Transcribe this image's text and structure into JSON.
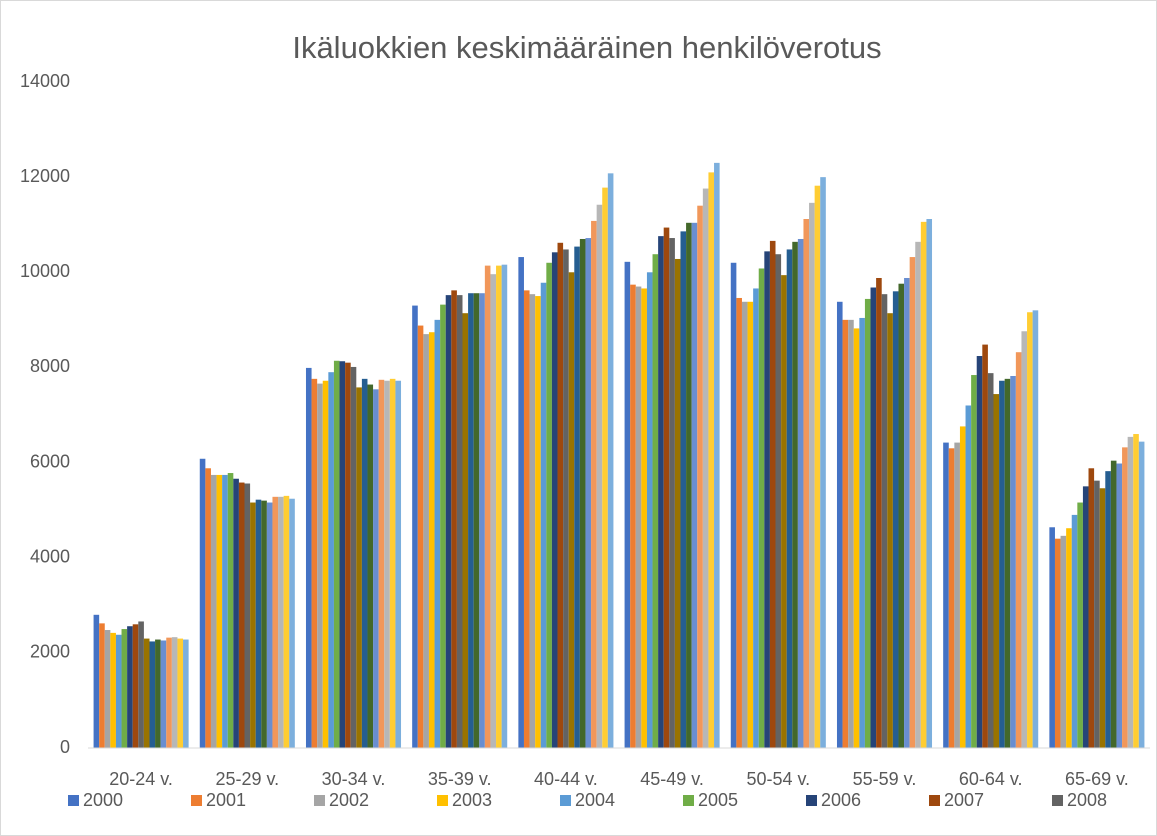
{
  "chart_data": {
    "type": "bar",
    "title": "Ikäluokkien keskimääräinen henkilöverotus",
    "categories": [
      "20-24 v.",
      "25-29 v.",
      "30-34 v.",
      "35-39 v.",
      "40-44 v.",
      "45-49 v.",
      "50-54 v.",
      "55-59 v.",
      "60-64 v.",
      "65-69 v."
    ],
    "ylim": [
      0,
      14000
    ],
    "yticks": [
      0,
      2000,
      4000,
      6000,
      8000,
      10000,
      12000,
      14000
    ],
    "grid": false,
    "legend": "bottom",
    "series": [
      {
        "name": "2000",
        "color": "#4472c4",
        "values": [
          2800,
          6080,
          7990,
          9300,
          10320,
          10220,
          10200,
          9380,
          6420,
          4640
        ]
      },
      {
        "name": "2001",
        "color": "#ed7d31",
        "values": [
          2620,
          5880,
          7760,
          8880,
          9620,
          9740,
          9460,
          9000,
          6300,
          4400
        ]
      },
      {
        "name": "2002",
        "color": "#a5a5a5",
        "values": [
          2480,
          5740,
          7660,
          8700,
          9540,
          9700,
          9380,
          9000,
          6420,
          4460
        ]
      },
      {
        "name": "2003",
        "color": "#ffc000",
        "values": [
          2420,
          5740,
          7720,
          8740,
          9500,
          9660,
          9380,
          8820,
          6760,
          4620
        ]
      },
      {
        "name": "2004",
        "color": "#5b9bd5",
        "values": [
          2380,
          5740,
          7900,
          9000,
          9780,
          10000,
          9660,
          9040,
          7200,
          4900
        ]
      },
      {
        "name": "2005",
        "color": "#70ad47",
        "values": [
          2500,
          5780,
          8140,
          9320,
          10200,
          10380,
          10080,
          9440,
          7840,
          5160
        ]
      },
      {
        "name": "2006",
        "color": "#264478",
        "values": [
          2560,
          5660,
          8130,
          9520,
          10420,
          10760,
          10440,
          9680,
          8240,
          5500
        ]
      },
      {
        "name": "2007",
        "color": "#9e480e",
        "values": [
          2600,
          5580,
          8100,
          9620,
          10620,
          10940,
          10660,
          9880,
          8480,
          5880
        ]
      },
      {
        "name": "2008",
        "color": "#636363",
        "values": [
          2660,
          5560,
          8010,
          9520,
          10480,
          10720,
          10380,
          9540,
          7880,
          5620
        ]
      },
      {
        "color": "#997300",
        "values": [
          2300,
          5160,
          7580,
          9140,
          10000,
          10280,
          9940,
          9140,
          7440,
          5460
        ]
      },
      {
        "color": "#255e91",
        "values": [
          2240,
          5220,
          7760,
          9560,
          10540,
          10860,
          10480,
          9600,
          7720,
          5820
        ]
      },
      {
        "color": "#43682b",
        "values": [
          2280,
          5200,
          7640,
          9560,
          10700,
          11040,
          10640,
          9760,
          7760,
          6040
        ]
      },
      {
        "color": "#698ed0",
        "values": [
          2260,
          5160,
          7540,
          9560,
          10720,
          11040,
          10700,
          9880,
          7820,
          5980
        ]
      },
      {
        "color": "#f1975a",
        "values": [
          2320,
          5280,
          7740,
          10140,
          11080,
          11400,
          11120,
          10320,
          8320,
          6320
        ]
      },
      {
        "color": "#b7b7b7",
        "values": [
          2330,
          5280,
          7720,
          9960,
          11420,
          11760,
          11460,
          10640,
          8760,
          6540
        ]
      },
      {
        "color": "#ffcd33",
        "values": [
          2300,
          5300,
          7760,
          10140,
          11780,
          12100,
          11820,
          11060,
          9160,
          6600
        ]
      },
      {
        "color": "#7cafdd",
        "values": [
          2280,
          5240,
          7720,
          10160,
          12080,
          12300,
          12000,
          11120,
          9200,
          6440
        ]
      }
    ]
  }
}
